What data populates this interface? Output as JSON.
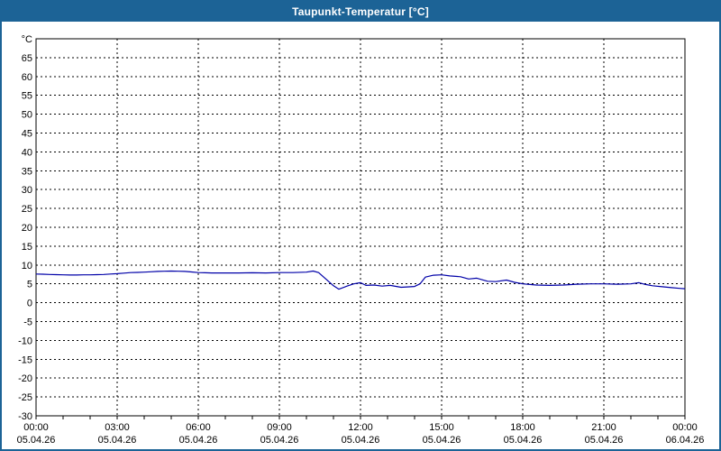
{
  "window": {
    "title": "Taupunkt-Temperatur [°C]"
  },
  "colors": {
    "titlebar_bg": "#1C6396",
    "titlebar_text": "#FFFFFF",
    "window_border": "#1C6396",
    "plot_background": "#FFFFFF",
    "plot_border": "#000000",
    "grid": "#000000",
    "axis_text": "#000000",
    "series_line": "#0000A8"
  },
  "chart_data": {
    "type": "line",
    "title": "Taupunkt-Temperatur [°C]",
    "ylabel": "°C",
    "ylim": [
      -30,
      70
    ],
    "y_tick_step": 5,
    "xlim_hours": [
      0,
      24
    ],
    "x_major_step_hours": 3,
    "x_minor_step_hours": 1,
    "grid": "dashed",
    "legend": "none",
    "x_tick_labels": [
      {
        "time": "00:00",
        "date": "05.04.26"
      },
      {
        "time": "03:00",
        "date": "05.04.26"
      },
      {
        "time": "06:00",
        "date": "05.04.26"
      },
      {
        "time": "09:00",
        "date": "05.04.26"
      },
      {
        "time": "12:00",
        "date": "05.04.26"
      },
      {
        "time": "15:00",
        "date": "05.04.26"
      },
      {
        "time": "18:00",
        "date": "05.04.26"
      },
      {
        "time": "21:00",
        "date": "05.04.26"
      },
      {
        "time": "00:00",
        "date": "06.04.26"
      }
    ],
    "series": [
      {
        "name": "Taupunkt-Temperatur",
        "unit": "°C",
        "x_hours": [
          0,
          0.25,
          0.5,
          0.75,
          1,
          1.25,
          1.5,
          1.75,
          2,
          2.25,
          2.5,
          2.75,
          3,
          3.25,
          3.5,
          3.75,
          4,
          4.25,
          4.5,
          4.75,
          5,
          5.25,
          5.5,
          5.75,
          6,
          6.25,
          6.5,
          7,
          7.5,
          8,
          8.5,
          9,
          9.5,
          10,
          10.25,
          10.45,
          10.7,
          11,
          11.2,
          11.5,
          11.75,
          12,
          12.2,
          12.5,
          12.8,
          13.1,
          13.5,
          13.8,
          14,
          14.2,
          14.4,
          14.7,
          15,
          15.3,
          15.7,
          16,
          16.3,
          16.7,
          17,
          17.4,
          17.7,
          18,
          18.5,
          19,
          19.5,
          20,
          20.5,
          21,
          21.5,
          22,
          22.3,
          22.5,
          22.8,
          23.2,
          23.5,
          23.8,
          24
        ],
        "y_values": [
          7.6,
          7.55,
          7.5,
          7.45,
          7.4,
          7.35,
          7.35,
          7.4,
          7.4,
          7.45,
          7.5,
          7.6,
          7.7,
          7.85,
          8.0,
          8.05,
          8.1,
          8.2,
          8.3,
          8.35,
          8.4,
          8.35,
          8.3,
          8.15,
          8.0,
          7.95,
          7.9,
          7.9,
          7.9,
          7.95,
          7.9,
          8.0,
          8.0,
          8.1,
          8.4,
          8.0,
          6.4,
          4.5,
          3.6,
          4.4,
          5.0,
          5.3,
          4.6,
          4.7,
          4.4,
          4.6,
          4.1,
          4.2,
          4.3,
          5.0,
          6.8,
          7.3,
          7.4,
          7.1,
          6.9,
          6.3,
          6.5,
          5.7,
          5.6,
          6.0,
          5.4,
          5.0,
          4.7,
          4.6,
          4.7,
          4.9,
          5.0,
          5.0,
          4.9,
          5.0,
          5.3,
          4.9,
          4.5,
          4.2,
          4.0,
          3.8,
          3.7
        ]
      }
    ]
  }
}
